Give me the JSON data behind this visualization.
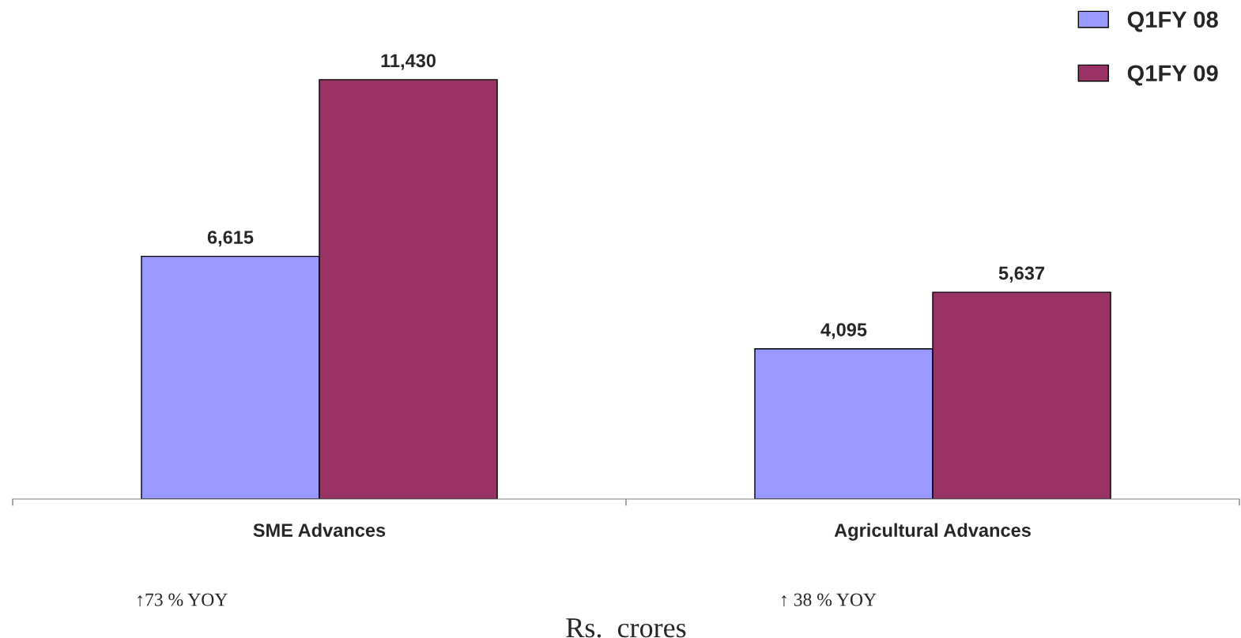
{
  "chart_data": {
    "type": "bar",
    "categories": [
      "SME Advances",
      "Agricultural Advances"
    ],
    "series": [
      {
        "name": "Q1FY 08",
        "color": "#9999ff",
        "values": [
          6615,
          4095
        ],
        "value_labels": [
          "6,615",
          "4,095"
        ]
      },
      {
        "name": "Q1FY 09",
        "color": "#993366",
        "values": [
          11430,
          5637
        ],
        "value_labels": [
          "11,430",
          "5,637"
        ]
      }
    ],
    "xlabel": "Rs.  crores",
    "annotations": [
      "↑73 % YOY",
      "↑ 38 % YOY"
    ],
    "legend": "top right",
    "grid": false
  }
}
